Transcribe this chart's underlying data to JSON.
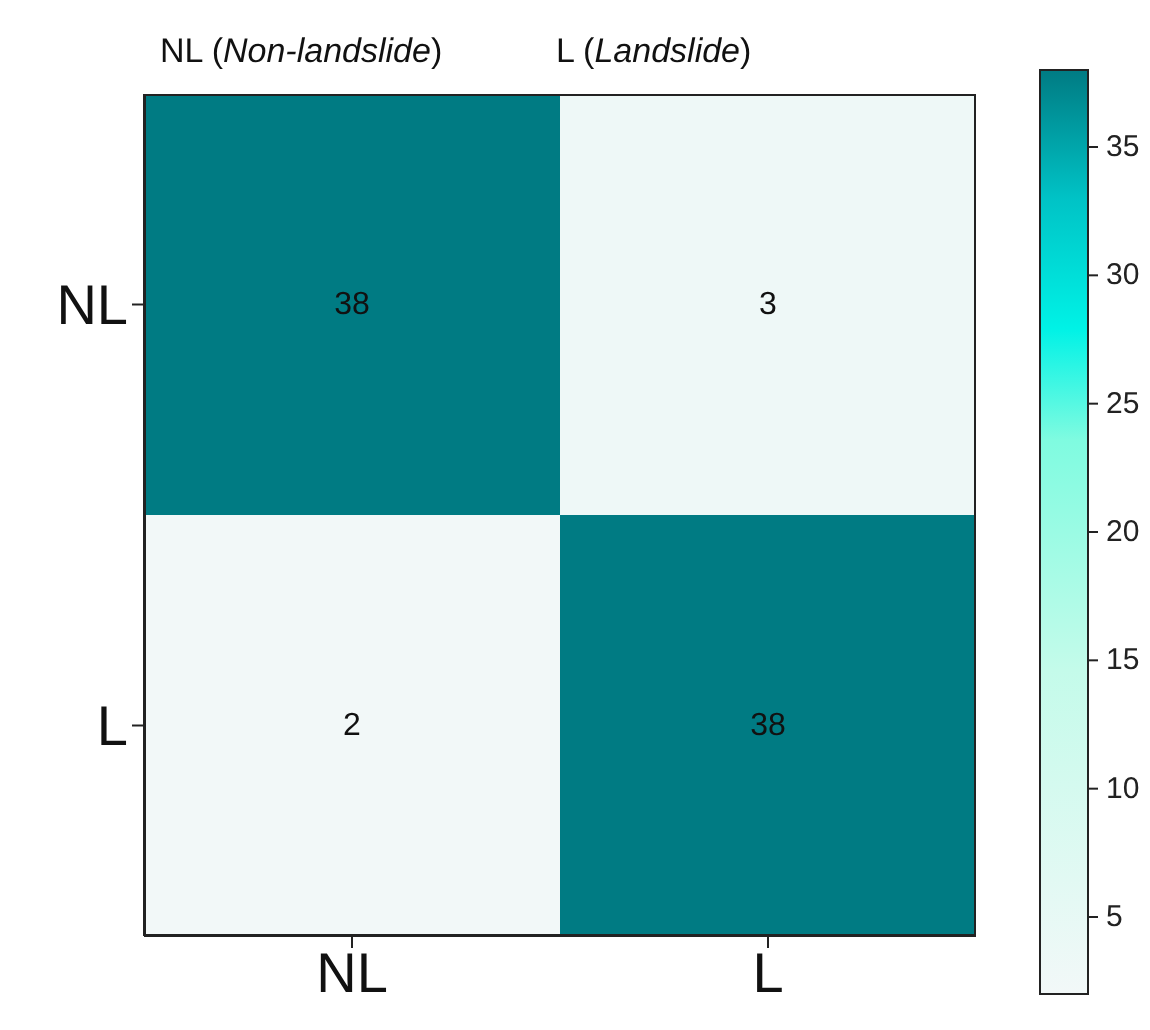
{
  "chart_data": {
    "type": "heatmap",
    "categories": [
      "NL",
      "L"
    ],
    "y_categories": [
      "NL",
      "L"
    ],
    "cells": [
      [
        38,
        3
      ],
      [
        2,
        38
      ]
    ],
    "clim": [
      2,
      38
    ],
    "cticks": [
      5,
      10,
      15,
      20,
      25,
      30,
      35
    ],
    "data_labels": true,
    "annotations": [
      "NL (Non-landslide)",
      "L (Landslide)"
    ]
  }
}
